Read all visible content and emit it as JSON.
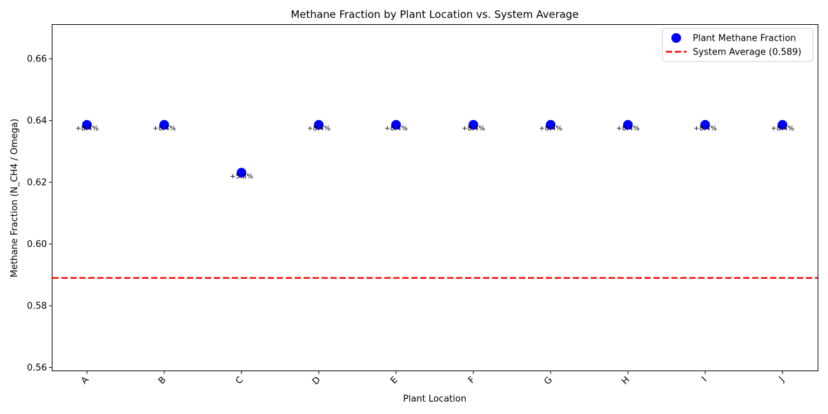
{
  "chart_data": {
    "type": "scatter",
    "title": "Methane Fraction by Plant Location vs. System Average",
    "xlabel": "Plant Location",
    "ylabel": "Methane Fraction (N_CH4 / Omega)",
    "categories": [
      "A",
      "B",
      "C",
      "D",
      "E",
      "F",
      "G",
      "H",
      "I",
      "J"
    ],
    "ylim": [
      0.559,
      0.671
    ],
    "yticks": [
      0.56,
      0.58,
      0.6,
      0.62,
      0.64,
      0.66
    ],
    "ytick_labels": [
      "0.56",
      "0.58",
      "0.60",
      "0.62",
      "0.64",
      "0.66"
    ],
    "series": [
      {
        "name": "Plant Methane Fraction",
        "color": "#0000ff",
        "values": [
          0.6386,
          0.6386,
          0.6231,
          0.6386,
          0.6386,
          0.6386,
          0.6386,
          0.6386,
          0.6386,
          0.6386
        ],
        "point_labels": [
          "+8.4%",
          "+8.4%",
          "+5.8%",
          "+8.4%",
          "+8.4%",
          "+8.4%",
          "+8.4%",
          "+8.4%",
          "+8.4%",
          "+8.4%"
        ]
      }
    ],
    "reference_line": {
      "name": "System Average (0.589)",
      "value": 0.589,
      "color": "#ff0000",
      "style": "dashed"
    },
    "legend_position": "top-right",
    "grid": false
  }
}
